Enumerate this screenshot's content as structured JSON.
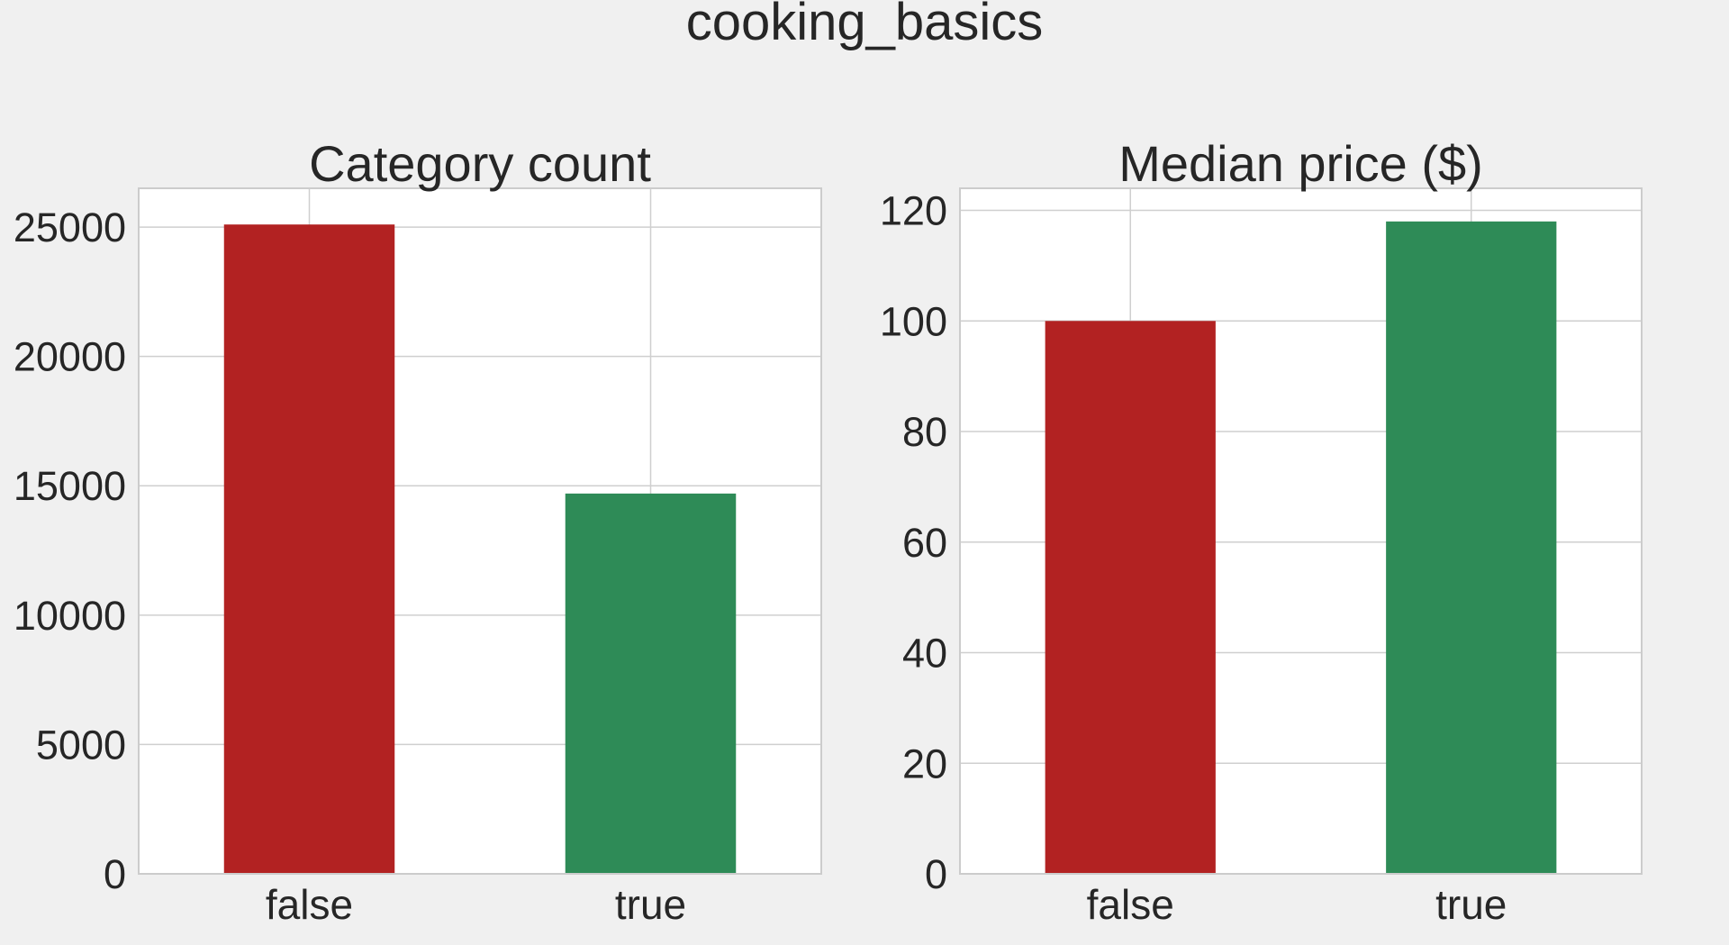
{
  "suptitle": "cooking_basics",
  "colors": {
    "background": "#f0f0f0",
    "panel": "#ffffff",
    "false_bar": "#b22222",
    "true_bar": "#2e8b57"
  },
  "chart_data": [
    {
      "type": "bar",
      "title": "Category count",
      "categories": [
        "false",
        "true"
      ],
      "values": [
        25100,
        14700
      ],
      "ylim": [
        0,
        26500
      ],
      "yticks": [
        0,
        5000,
        10000,
        15000,
        20000,
        25000
      ],
      "ytick_labels": [
        "0",
        "5000",
        "10000",
        "15000",
        "20000",
        "25000"
      ],
      "bar_colors": [
        "#b22222",
        "#2e8b57"
      ],
      "grid": true,
      "xlabel": "",
      "ylabel": ""
    },
    {
      "type": "bar",
      "title": "Median price ($)",
      "categories": [
        "false",
        "true"
      ],
      "values": [
        100,
        118
      ],
      "ylim": [
        0,
        124
      ],
      "yticks": [
        0,
        20,
        40,
        60,
        80,
        100,
        120
      ],
      "ytick_labels": [
        "0",
        "20",
        "40",
        "60",
        "80",
        "100",
        "120"
      ],
      "bar_colors": [
        "#b22222",
        "#2e8b57"
      ],
      "grid": true,
      "xlabel": "",
      "ylabel": ""
    }
  ]
}
